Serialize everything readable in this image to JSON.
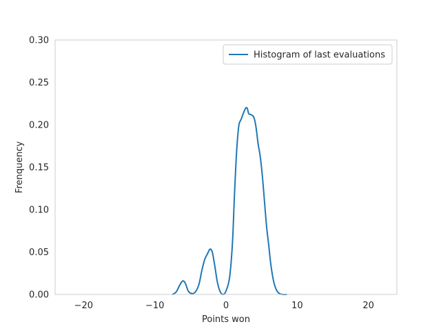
{
  "chart_data": {
    "type": "line",
    "title": "",
    "xlabel": "Points won",
    "ylabel": "Frenquency",
    "xlim": [
      -24,
      24
    ],
    "ylim": [
      0,
      0.3
    ],
    "xticks": [
      -20,
      -10,
      0,
      10,
      20
    ],
    "xtick_labels": [
      "−20",
      "−10",
      "0",
      "10",
      "20"
    ],
    "yticks": [
      0.0,
      0.05,
      0.1,
      0.15,
      0.2,
      0.25,
      0.3
    ],
    "ytick_labels": [
      "0.00",
      "0.05",
      "0.10",
      "0.15",
      "0.20",
      "0.25",
      "0.30"
    ],
    "grid": false,
    "legend": {
      "position": "upper right",
      "entries": [
        "Histogram of last evaluations"
      ]
    },
    "series": [
      {
        "name": "Histogram of last evaluations",
        "color": "#1f77b4",
        "x": [
          -7.5,
          -7.0,
          -6.5,
          -6.2,
          -6.0,
          -5.7,
          -5.3,
          -4.8,
          -4.3,
          -3.8,
          -3.4,
          -3.0,
          -2.6,
          -2.3,
          -2.1,
          -1.9,
          -1.6,
          -1.2,
          -0.8,
          -0.4,
          0.0,
          0.5,
          0.9,
          1.2,
          1.5,
          1.8,
          2.1,
          2.5,
          2.8,
          3.0,
          3.2,
          3.5,
          3.9,
          4.2,
          4.5,
          4.8,
          5.1,
          5.4,
          5.7,
          6.0,
          6.3,
          6.7,
          7.1,
          7.5,
          8.0,
          8.5
        ],
        "y": [
          0.0,
          0.003,
          0.011,
          0.015,
          0.016,
          0.013,
          0.004,
          0.001,
          0.003,
          0.012,
          0.028,
          0.041,
          0.048,
          0.053,
          0.053,
          0.049,
          0.035,
          0.014,
          0.003,
          0.0,
          0.004,
          0.02,
          0.06,
          0.12,
          0.17,
          0.199,
          0.206,
          0.215,
          0.22,
          0.219,
          0.213,
          0.212,
          0.209,
          0.198,
          0.178,
          0.163,
          0.14,
          0.11,
          0.08,
          0.058,
          0.035,
          0.015,
          0.005,
          0.001,
          0.0,
          0.0
        ]
      }
    ]
  }
}
